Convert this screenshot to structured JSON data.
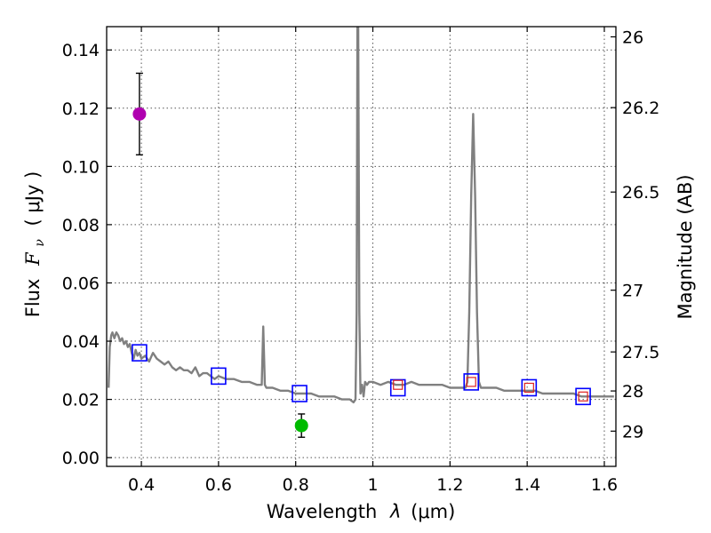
{
  "chart_data": {
    "type": "scatter",
    "xlabel_text": "Wavelength",
    "xlabel_sym": "λ",
    "xlabel_unit": "(μm)",
    "ylabel_text": "Flux",
    "ylabel_sym_main": "F",
    "ylabel_sym_sub": "ν",
    "ylabel_unit": "( μJy )",
    "y2label": "Magnitude (AB)",
    "xlim": [
      0.31,
      1.63
    ],
    "ylim": [
      -0.003,
      0.148
    ],
    "xticks": [
      0.4,
      0.6,
      0.8,
      1.0,
      1.2,
      1.4,
      1.6
    ],
    "xtick_labels": [
      "0.4",
      "0.6",
      "0.8",
      "1",
      "1.2",
      "1.4",
      "1.6"
    ],
    "yticks": [
      0.0,
      0.02,
      0.04,
      0.06,
      0.08,
      0.1,
      0.12,
      0.14
    ],
    "ytick_labels": [
      "0.00",
      "0.02",
      "0.04",
      "0.06",
      "0.08",
      "0.10",
      "0.12",
      "0.14"
    ],
    "y2ticks": [
      {
        "label": "26",
        "flux": 0.1445
      },
      {
        "label": "26.2",
        "flux": 0.1202
      },
      {
        "label": "26.5",
        "flux": 0.0912
      },
      {
        "label": "27",
        "flux": 0.0575
      },
      {
        "label": "27.5",
        "flux": 0.0363
      },
      {
        "label": "28",
        "flux": 0.0229
      },
      {
        "label": "29",
        "flux": 0.0091
      }
    ],
    "model_spectrum": {
      "color": "#808080",
      "x": [
        0.315,
        0.318,
        0.322,
        0.325,
        0.33,
        0.335,
        0.34,
        0.345,
        0.35,
        0.355,
        0.36,
        0.365,
        0.37,
        0.375,
        0.38,
        0.385,
        0.39,
        0.395,
        0.4,
        0.41,
        0.42,
        0.43,
        0.44,
        0.45,
        0.46,
        0.47,
        0.48,
        0.49,
        0.5,
        0.51,
        0.52,
        0.53,
        0.54,
        0.55,
        0.56,
        0.57,
        0.58,
        0.59,
        0.6,
        0.62,
        0.64,
        0.66,
        0.68,
        0.7,
        0.712,
        0.716,
        0.72,
        0.724,
        0.728,
        0.74,
        0.76,
        0.78,
        0.8,
        0.82,
        0.84,
        0.86,
        0.88,
        0.9,
        0.92,
        0.94,
        0.95,
        0.955,
        0.958,
        0.96,
        0.962,
        0.965,
        0.968,
        0.972,
        0.976,
        0.98,
        0.985,
        0.99,
        1.0,
        1.02,
        1.04,
        1.06,
        1.08,
        1.1,
        1.12,
        1.14,
        1.16,
        1.18,
        1.2,
        1.22,
        1.24,
        1.245,
        1.25,
        1.255,
        1.26,
        1.265,
        1.27,
        1.275,
        1.28,
        1.29,
        1.3,
        1.32,
        1.34,
        1.36,
        1.38,
        1.4,
        1.42,
        1.44,
        1.46,
        1.48,
        1.5,
        1.52,
        1.54,
        1.56,
        1.58,
        1.6,
        1.625
      ],
      "y": [
        0.024,
        0.038,
        0.042,
        0.043,
        0.041,
        0.043,
        0.042,
        0.04,
        0.041,
        0.039,
        0.04,
        0.038,
        0.039,
        0.036,
        0.034,
        0.037,
        0.035,
        0.036,
        0.034,
        0.035,
        0.033,
        0.036,
        0.034,
        0.033,
        0.032,
        0.033,
        0.031,
        0.03,
        0.031,
        0.03,
        0.03,
        0.029,
        0.031,
        0.028,
        0.029,
        0.029,
        0.028,
        0.027,
        0.028,
        0.027,
        0.027,
        0.026,
        0.026,
        0.025,
        0.025,
        0.045,
        0.025,
        0.024,
        0.024,
        0.024,
        0.023,
        0.023,
        0.022,
        0.022,
        0.022,
        0.021,
        0.021,
        0.021,
        0.02,
        0.02,
        0.019,
        0.02,
        0.05,
        0.152,
        0.152,
        0.05,
        0.022,
        0.025,
        0.021,
        0.026,
        0.025,
        0.026,
        0.026,
        0.025,
        0.026,
        0.025,
        0.025,
        0.026,
        0.025,
        0.025,
        0.025,
        0.025,
        0.024,
        0.024,
        0.024,
        0.026,
        0.05,
        0.09,
        0.118,
        0.09,
        0.05,
        0.026,
        0.024,
        0.024,
        0.024,
        0.024,
        0.023,
        0.023,
        0.023,
        0.023,
        0.023,
        0.022,
        0.022,
        0.022,
        0.022,
        0.022,
        0.021,
        0.021,
        0.021,
        0.021,
        0.021
      ]
    },
    "model_photometry_squares": {
      "color": "#0000ff",
      "x": [
        0.395,
        0.6,
        0.81,
        1.065,
        1.255,
        1.405,
        1.545
      ],
      "y": [
        0.036,
        0.028,
        0.022,
        0.024,
        0.026,
        0.024,
        0.021
      ]
    },
    "observed_squares": {
      "color": "#dd2222",
      "x": [
        1.065,
        1.255,
        1.405,
        1.545
      ],
      "y": [
        0.025,
        0.026,
        0.024,
        0.021
      ]
    },
    "detections": [
      {
        "name": "magenta-point",
        "x": 0.395,
        "y": 0.118,
        "yerr_low": 0.104,
        "yerr_high": 0.132,
        "color": "#b000b0"
      },
      {
        "name": "green-point",
        "x": 0.815,
        "y": 0.011,
        "yerr_low": 0.007,
        "yerr_high": 0.015,
        "color": "#00bb00"
      }
    ]
  }
}
